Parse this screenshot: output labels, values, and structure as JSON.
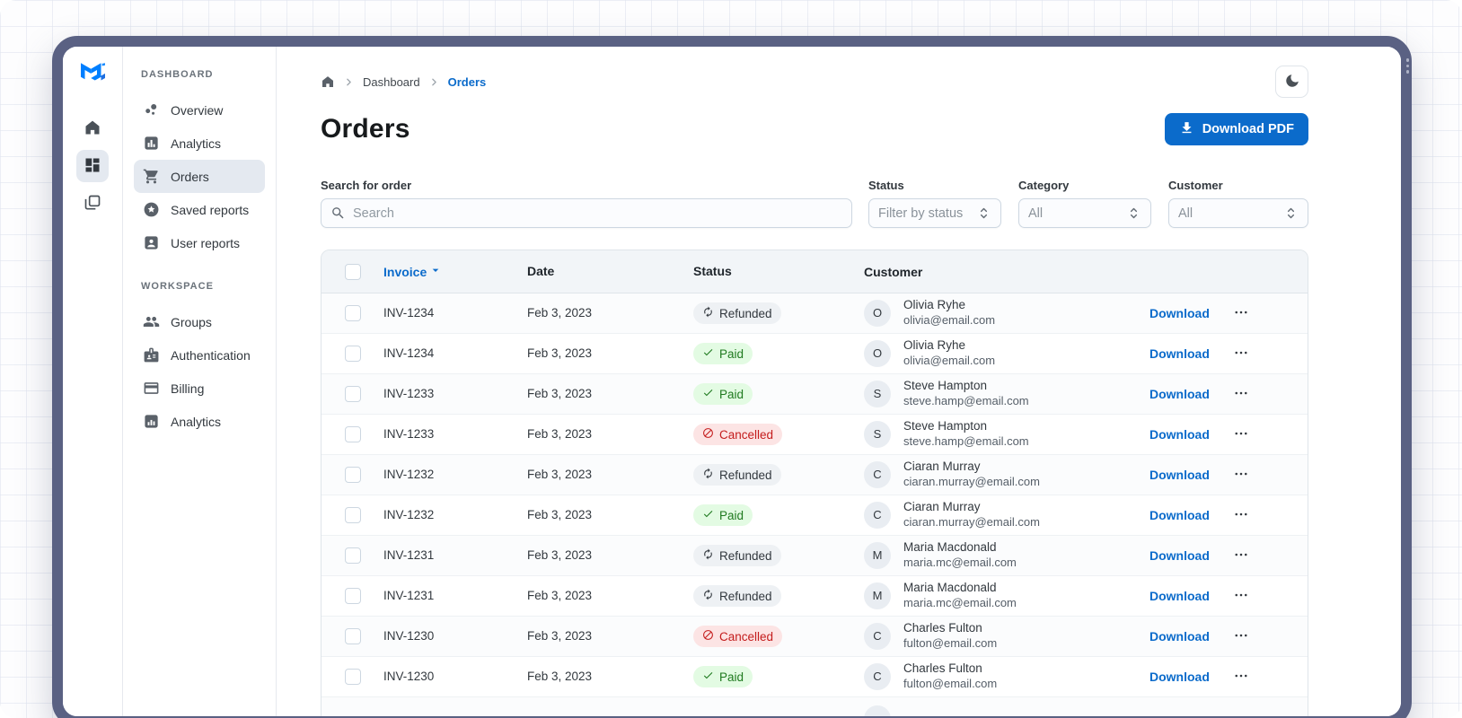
{
  "colors": {
    "primary": "#0B6BCB",
    "window_frame": "#5A6183",
    "paid_bg": "#E3FBE3",
    "paid_text": "#1F7A1F",
    "refunded_bg": "#EEF1F4",
    "refunded_text": "#32383E",
    "cancelled_bg": "#FCE4E4",
    "cancelled_text": "#C41C1C"
  },
  "minirail": {
    "logo_icon": "mui-logo",
    "items": [
      {
        "icon": "home-icon",
        "active": false
      },
      {
        "icon": "dashboard-grid-icon",
        "active": true
      },
      {
        "icon": "layers-icon",
        "active": false
      }
    ]
  },
  "sidebar": {
    "sections": [
      {
        "label": "DASHBOARD",
        "items": [
          {
            "icon": "bubble-chart-icon",
            "label": "Overview",
            "active": false
          },
          {
            "icon": "bar-chart-icon",
            "label": "Analytics",
            "active": false
          },
          {
            "icon": "shopping-cart-icon",
            "label": "Orders",
            "active": true
          },
          {
            "icon": "star-circle-icon",
            "label": "Saved reports",
            "active": false
          },
          {
            "icon": "user-card-icon",
            "label": "User reports",
            "active": false
          }
        ]
      },
      {
        "label": "WORKSPACE",
        "items": [
          {
            "icon": "groups-icon",
            "label": "Groups",
            "active": false
          },
          {
            "icon": "badge-icon",
            "label": "Authentication",
            "active": false
          },
          {
            "icon": "credit-card-icon",
            "label": "Billing",
            "active": false
          },
          {
            "icon": "chart-small-icon",
            "label": "Analytics",
            "active": false
          }
        ]
      }
    ]
  },
  "breadcrumb": {
    "home_icon": "home-icon",
    "items": [
      {
        "label": "Dashboard",
        "current": false
      },
      {
        "label": "Orders",
        "current": true
      }
    ]
  },
  "page": {
    "title": "Orders"
  },
  "toolbar": {
    "download_pdf_label": "Download PDF",
    "theme_toggle_icon": "moon-icon"
  },
  "filters": {
    "search": {
      "label": "Search for order",
      "placeholder": "Search",
      "value": ""
    },
    "selects": [
      {
        "label": "Status",
        "value": "Filter by status"
      },
      {
        "label": "Category",
        "value": "All"
      },
      {
        "label": "Customer",
        "value": "All"
      }
    ]
  },
  "table": {
    "columns": {
      "invoice": "Invoice",
      "date": "Date",
      "status": "Status",
      "customer": "Customer"
    },
    "sort": {
      "column": "Invoice",
      "direction": "desc"
    },
    "row_action_label": "Download",
    "rows": [
      {
        "invoice": "INV-1234",
        "date": "Feb 3, 2023",
        "status": "Refunded",
        "initial": "O",
        "name": "Olivia Ryhe",
        "email": "olivia@email.com"
      },
      {
        "invoice": "INV-1234",
        "date": "Feb 3, 2023",
        "status": "Paid",
        "initial": "O",
        "name": "Olivia Ryhe",
        "email": "olivia@email.com"
      },
      {
        "invoice": "INV-1233",
        "date": "Feb 3, 2023",
        "status": "Paid",
        "initial": "S",
        "name": "Steve Hampton",
        "email": "steve.hamp@email.com"
      },
      {
        "invoice": "INV-1233",
        "date": "Feb 3, 2023",
        "status": "Cancelled",
        "initial": "S",
        "name": "Steve Hampton",
        "email": "steve.hamp@email.com"
      },
      {
        "invoice": "INV-1232",
        "date": "Feb 3, 2023",
        "status": "Refunded",
        "initial": "C",
        "name": "Ciaran Murray",
        "email": "ciaran.murray@email.com"
      },
      {
        "invoice": "INV-1232",
        "date": "Feb 3, 2023",
        "status": "Paid",
        "initial": "C",
        "name": "Ciaran Murray",
        "email": "ciaran.murray@email.com"
      },
      {
        "invoice": "INV-1231",
        "date": "Feb 3, 2023",
        "status": "Refunded",
        "initial": "M",
        "name": "Maria Macdonald",
        "email": "maria.mc@email.com"
      },
      {
        "invoice": "INV-1231",
        "date": "Feb 3, 2023",
        "status": "Refunded",
        "initial": "M",
        "name": "Maria Macdonald",
        "email": "maria.mc@email.com"
      },
      {
        "invoice": "INV-1230",
        "date": "Feb 3, 2023",
        "status": "Cancelled",
        "initial": "C",
        "name": "Charles Fulton",
        "email": "fulton@email.com"
      },
      {
        "invoice": "INV-1230",
        "date": "Feb 3, 2023",
        "status": "Paid",
        "initial": "C",
        "name": "Charles Fulton",
        "email": "fulton@email.com"
      }
    ],
    "status_icons": {
      "Paid": "check-icon",
      "Refunded": "autorenew-icon",
      "Cancelled": "block-icon"
    }
  }
}
